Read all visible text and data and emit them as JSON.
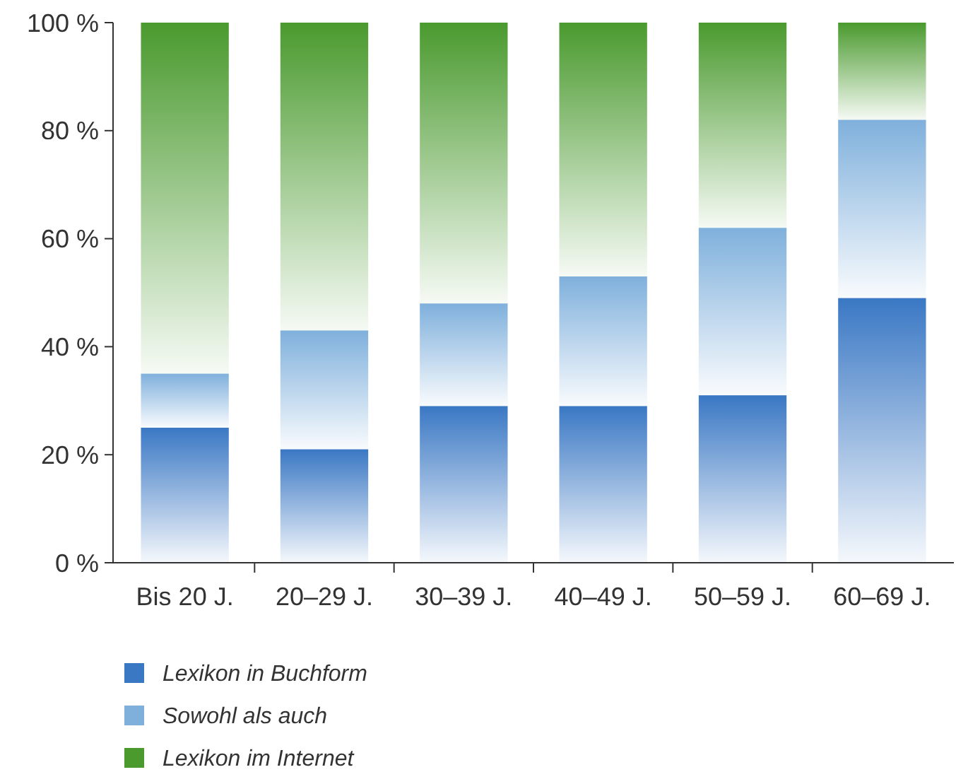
{
  "chart_data": {
    "type": "bar",
    "stacked": true,
    "categories": [
      "Bis 20 J.",
      "20–29 J.",
      "30–39 J.",
      "40–49 J.",
      "50–59 J.",
      "60–69 J."
    ],
    "series": [
      {
        "name": "Lexikon in Buchform",
        "color": "#3a78c4",
        "values": [
          25,
          21,
          29,
          29,
          31,
          49
        ]
      },
      {
        "name": "Sowohl als auch",
        "color": "#7fb0dc",
        "values": [
          10,
          22,
          19,
          24,
          31,
          33
        ]
      },
      {
        "name": "Lexikon im Internet",
        "color": "#4a9a2e",
        "values": [
          65,
          57,
          52,
          47,
          38,
          18
        ]
      }
    ],
    "ylim": [
      0,
      100
    ],
    "yticks": [
      {
        "value": 0,
        "label": "0 %"
      },
      {
        "value": 20,
        "label": "20 %"
      },
      {
        "value": 40,
        "label": "40 %"
      },
      {
        "value": 60,
        "label": "60 %"
      },
      {
        "value": 80,
        "label": "80 %"
      },
      {
        "value": 100,
        "label": "100 %"
      }
    ],
    "grid": false,
    "legend": "bottom"
  }
}
